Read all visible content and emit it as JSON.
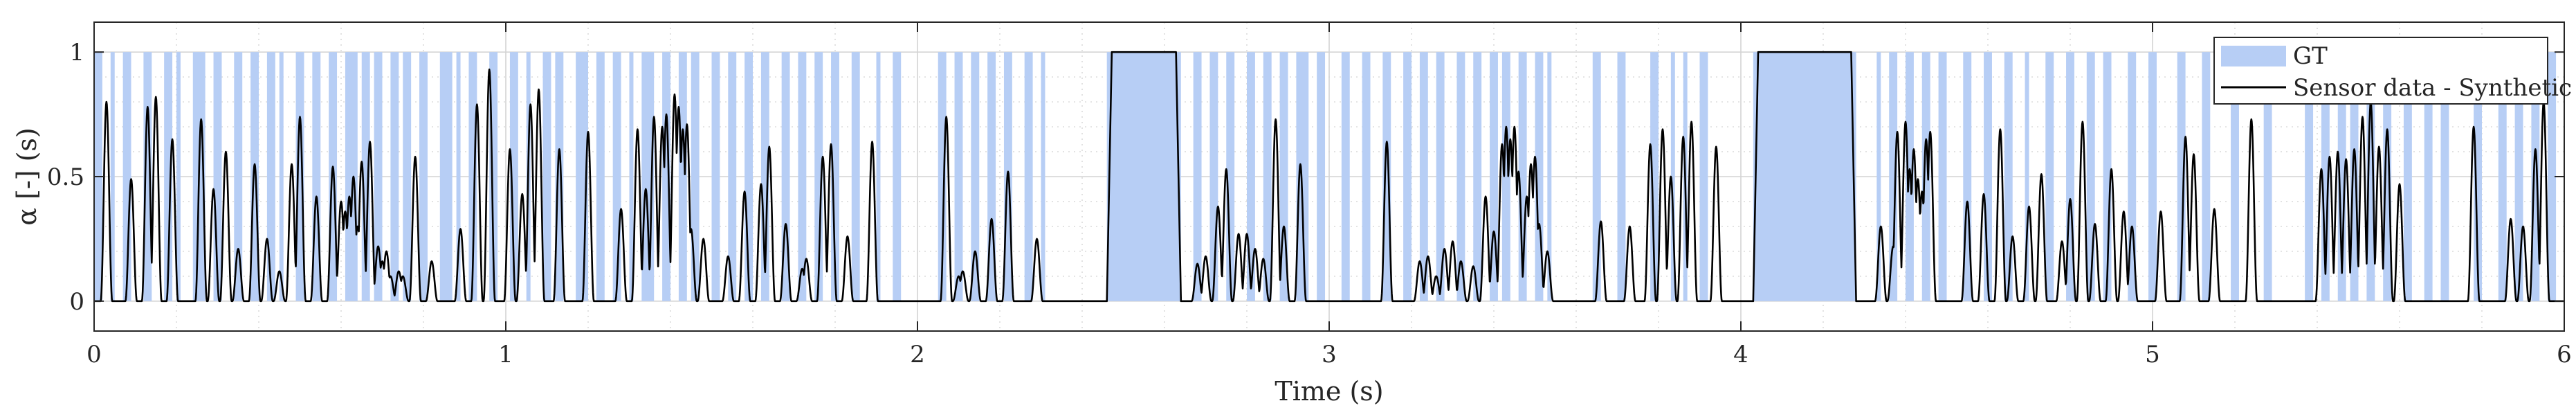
{
  "chart_data": {
    "type": "line",
    "title": "",
    "xlabel": "Time (s)",
    "ylabel": "α [-] (s)",
    "xlim": [
      0,
      6
    ],
    "ylim": [
      -0.12,
      1.12
    ],
    "xticks": [
      0,
      1,
      2,
      3,
      4,
      5,
      6
    ],
    "yticks": [
      0,
      0.5,
      1
    ],
    "xtick_labels": [
      "0",
      "1",
      "2",
      "3",
      "4",
      "5",
      "6"
    ],
    "ytick_labels": [
      "0",
      "0.5",
      "1"
    ],
    "grid": true,
    "legend": "top-right",
    "legend_entries": [
      "GT",
      "Sensor data - Synthetic"
    ],
    "series": [
      {
        "name": "GT",
        "kind": "area",
        "color": "#b7cef5",
        "intervals": [
          [
            0.0,
            0.02
          ],
          [
            0.04,
            0.05
          ],
          [
            0.07,
            0.09
          ],
          [
            0.12,
            0.14
          ],
          [
            0.17,
            0.19
          ],
          [
            0.2,
            0.21
          ],
          [
            0.24,
            0.27
          ],
          [
            0.29,
            0.31
          ],
          [
            0.34,
            0.36
          ],
          [
            0.38,
            0.4
          ],
          [
            0.42,
            0.44
          ],
          [
            0.45,
            0.46
          ],
          [
            0.49,
            0.51
          ],
          [
            0.53,
            0.55
          ],
          [
            0.57,
            0.59
          ],
          [
            0.61,
            0.64
          ],
          [
            0.65,
            0.67
          ],
          [
            0.68,
            0.7
          ],
          [
            0.72,
            0.74
          ],
          [
            0.75,
            0.77
          ],
          [
            0.79,
            0.81
          ],
          [
            0.84,
            0.87
          ],
          [
            0.88,
            0.89
          ],
          [
            0.91,
            0.93
          ],
          [
            0.96,
            0.98
          ],
          [
            1.01,
            1.03
          ],
          [
            1.05,
            1.06
          ],
          [
            1.09,
            1.11
          ],
          [
            1.12,
            1.14
          ],
          [
            1.17,
            1.2
          ],
          [
            1.22,
            1.24
          ],
          [
            1.26,
            1.28
          ],
          [
            1.3,
            1.31
          ],
          [
            1.33,
            1.36
          ],
          [
            1.38,
            1.4
          ],
          [
            1.42,
            1.44
          ],
          [
            1.45,
            1.47
          ],
          [
            1.5,
            1.52
          ],
          [
            1.54,
            1.56
          ],
          [
            1.58,
            1.6
          ],
          [
            1.62,
            1.64
          ],
          [
            1.67,
            1.69
          ],
          [
            1.71,
            1.73
          ],
          [
            1.75,
            1.77
          ],
          [
            1.79,
            1.81
          ],
          [
            1.84,
            1.86
          ],
          [
            1.9,
            1.91
          ],
          [
            1.94,
            1.96
          ],
          [
            2.05,
            2.07
          ],
          [
            2.09,
            2.11
          ],
          [
            2.13,
            2.15
          ],
          [
            2.17,
            2.19
          ],
          [
            2.21,
            2.23
          ],
          [
            2.26,
            2.28
          ],
          [
            2.3,
            2.31
          ],
          [
            2.46,
            2.64
          ],
          [
            2.67,
            2.69
          ],
          [
            2.71,
            2.73
          ],
          [
            2.75,
            2.77
          ],
          [
            2.8,
            2.82
          ],
          [
            2.84,
            2.86
          ],
          [
            2.88,
            2.9
          ],
          [
            2.92,
            2.95
          ],
          [
            2.97,
            2.99
          ],
          [
            3.03,
            3.05
          ],
          [
            3.08,
            3.1
          ],
          [
            3.13,
            3.15
          ],
          [
            3.18,
            3.2
          ],
          [
            3.22,
            3.24
          ],
          [
            3.26,
            3.28
          ],
          [
            3.31,
            3.33
          ],
          [
            3.35,
            3.37
          ],
          [
            3.39,
            3.41
          ],
          [
            3.42,
            3.44
          ],
          [
            3.46,
            3.48
          ],
          [
            3.5,
            3.52
          ],
          [
            3.53,
            3.54
          ],
          [
            3.64,
            3.66
          ],
          [
            3.7,
            3.72
          ],
          [
            3.78,
            3.8
          ],
          [
            3.83,
            3.84
          ],
          [
            3.86,
            3.87
          ],
          [
            3.9,
            3.92
          ],
          [
            4.03,
            4.28
          ],
          [
            4.33,
            4.34
          ],
          [
            4.36,
            4.38
          ],
          [
            4.4,
            4.42
          ],
          [
            4.44,
            4.46
          ],
          [
            4.48,
            4.5
          ],
          [
            4.54,
            4.56
          ],
          [
            4.59,
            4.61
          ],
          [
            4.64,
            4.66
          ],
          [
            4.69,
            4.7
          ],
          [
            4.74,
            4.76
          ],
          [
            4.79,
            4.81
          ],
          [
            4.84,
            4.86
          ],
          [
            4.88,
            4.9
          ],
          [
            4.94,
            4.96
          ],
          [
            4.99,
            5.01
          ],
          [
            5.06,
            5.08
          ],
          [
            5.12,
            5.14
          ],
          [
            5.19,
            5.21
          ],
          [
            5.27,
            5.29
          ],
          [
            5.37,
            5.39
          ],
          [
            5.41,
            5.43
          ],
          [
            5.45,
            5.47
          ],
          [
            5.48,
            5.5
          ],
          [
            5.52,
            5.54
          ],
          [
            5.56,
            5.58
          ],
          [
            5.61,
            5.63
          ],
          [
            5.66,
            5.68
          ],
          [
            5.7,
            5.72
          ],
          [
            5.78,
            5.8
          ],
          [
            5.84,
            5.86
          ],
          [
            5.88,
            5.9
          ],
          [
            5.92,
            5.94
          ],
          [
            5.96,
            5.98
          ]
        ]
      },
      {
        "name": "Sensor data - Synthetic",
        "kind": "line",
        "color": "#000000",
        "peaks": [
          [
            0.03,
            0.8
          ],
          [
            0.09,
            0.49
          ],
          [
            0.13,
            0.78
          ],
          [
            0.15,
            0.82
          ],
          [
            0.19,
            0.65
          ],
          [
            0.26,
            0.73
          ],
          [
            0.29,
            0.45
          ],
          [
            0.32,
            0.6
          ],
          [
            0.35,
            0.21
          ],
          [
            0.39,
            0.55
          ],
          [
            0.42,
            0.25
          ],
          [
            0.45,
            0.12
          ],
          [
            0.48,
            0.55
          ],
          [
            0.5,
            0.74
          ],
          [
            0.54,
            0.42
          ],
          [
            0.58,
            0.54
          ],
          [
            0.6,
            0.4
          ],
          [
            0.61,
            0.36
          ],
          [
            0.62,
            0.42
          ],
          [
            0.63,
            0.5
          ],
          [
            0.64,
            0.3
          ],
          [
            0.65,
            0.56
          ],
          [
            0.67,
            0.64
          ],
          [
            0.69,
            0.22
          ],
          [
            0.7,
            0.16
          ],
          [
            0.71,
            0.2
          ],
          [
            0.72,
            0.1
          ],
          [
            0.74,
            0.12
          ],
          [
            0.75,
            0.1
          ],
          [
            0.78,
            0.58
          ],
          [
            0.82,
            0.16
          ],
          [
            0.89,
            0.29
          ],
          [
            0.93,
            0.79
          ],
          [
            0.96,
            0.93
          ],
          [
            1.01,
            0.61
          ],
          [
            1.04,
            0.43
          ],
          [
            1.06,
            0.79
          ],
          [
            1.08,
            0.85
          ],
          [
            1.13,
            0.61
          ],
          [
            1.2,
            0.68
          ],
          [
            1.28,
            0.37
          ],
          [
            1.32,
            0.69
          ],
          [
            1.34,
            0.45
          ],
          [
            1.36,
            0.74
          ],
          [
            1.38,
            0.7
          ],
          [
            1.39,
            0.75
          ],
          [
            1.41,
            0.83
          ],
          [
            1.42,
            0.78
          ],
          [
            1.43,
            0.69
          ],
          [
            1.44,
            0.71
          ],
          [
            1.45,
            0.29
          ],
          [
            1.48,
            0.25
          ],
          [
            1.54,
            0.18
          ],
          [
            1.58,
            0.44
          ],
          [
            1.62,
            0.47
          ],
          [
            1.64,
            0.62
          ],
          [
            1.68,
            0.31
          ],
          [
            1.72,
            0.13
          ],
          [
            1.73,
            0.17
          ],
          [
            1.77,
            0.58
          ],
          [
            1.79,
            0.63
          ],
          [
            1.83,
            0.26
          ],
          [
            1.89,
            0.64
          ],
          [
            2.07,
            0.74
          ],
          [
            2.1,
            0.1
          ],
          [
            2.11,
            0.12
          ],
          [
            2.14,
            0.2
          ],
          [
            2.18,
            0.33
          ],
          [
            2.22,
            0.52
          ],
          [
            2.29,
            0.25
          ],
          [
            2.68,
            0.15
          ],
          [
            2.7,
            0.18
          ],
          [
            2.73,
            0.38
          ],
          [
            2.75,
            0.53
          ],
          [
            2.78,
            0.27
          ],
          [
            2.8,
            0.27
          ],
          [
            2.82,
            0.21
          ],
          [
            2.84,
            0.17
          ],
          [
            2.87,
            0.73
          ],
          [
            2.89,
            0.3
          ],
          [
            2.93,
            0.55
          ],
          [
            3.14,
            0.64
          ],
          [
            3.22,
            0.16
          ],
          [
            3.24,
            0.18
          ],
          [
            3.26,
            0.1
          ],
          [
            3.28,
            0.21
          ],
          [
            3.3,
            0.24
          ],
          [
            3.32,
            0.16
          ],
          [
            3.35,
            0.14
          ],
          [
            3.38,
            0.42
          ],
          [
            3.4,
            0.28
          ],
          [
            3.42,
            0.63
          ],
          [
            3.43,
            0.7
          ],
          [
            3.44,
            0.65
          ],
          [
            3.45,
            0.7
          ],
          [
            3.46,
            0.52
          ],
          [
            3.48,
            0.42
          ],
          [
            3.49,
            0.55
          ],
          [
            3.5,
            0.58
          ],
          [
            3.51,
            0.31
          ],
          [
            3.53,
            0.2
          ],
          [
            3.66,
            0.32
          ],
          [
            3.73,
            0.3
          ],
          [
            3.78,
            0.63
          ],
          [
            3.81,
            0.69
          ],
          [
            3.83,
            0.5
          ],
          [
            3.86,
            0.66
          ],
          [
            3.88,
            0.72
          ],
          [
            3.94,
            0.62
          ],
          [
            4.34,
            0.3
          ],
          [
            4.37,
            0.22
          ],
          [
            4.38,
            0.68
          ],
          [
            4.4,
            0.72
          ],
          [
            4.41,
            0.53
          ],
          [
            4.42,
            0.61
          ],
          [
            4.43,
            0.49
          ],
          [
            4.44,
            0.44
          ],
          [
            4.45,
            0.65
          ],
          [
            4.46,
            0.68
          ],
          [
            4.55,
            0.4
          ],
          [
            4.59,
            0.43
          ],
          [
            4.63,
            0.69
          ],
          [
            4.66,
            0.26
          ],
          [
            4.7,
            0.38
          ],
          [
            4.73,
            0.51
          ],
          [
            4.78,
            0.24
          ],
          [
            4.8,
            0.41
          ],
          [
            4.83,
            0.72
          ],
          [
            4.86,
            0.31
          ],
          [
            4.9,
            0.53
          ],
          [
            4.93,
            0.36
          ],
          [
            4.95,
            0.3
          ],
          [
            5.02,
            0.36
          ],
          [
            5.08,
            0.66
          ],
          [
            5.1,
            0.59
          ],
          [
            5.15,
            0.37
          ],
          [
            5.24,
            0.73
          ],
          [
            5.41,
            0.53
          ],
          [
            5.43,
            0.58
          ],
          [
            5.45,
            0.6
          ],
          [
            5.47,
            0.57
          ],
          [
            5.49,
            0.61
          ],
          [
            5.51,
            0.74
          ],
          [
            5.53,
            0.8
          ],
          [
            5.55,
            0.62
          ],
          [
            5.57,
            0.69
          ],
          [
            5.6,
            0.47
          ],
          [
            5.78,
            0.7
          ],
          [
            5.87,
            0.33
          ],
          [
            5.9,
            0.3
          ],
          [
            5.93,
            0.61
          ],
          [
            5.95,
            0.8
          ]
        ]
      }
    ]
  }
}
